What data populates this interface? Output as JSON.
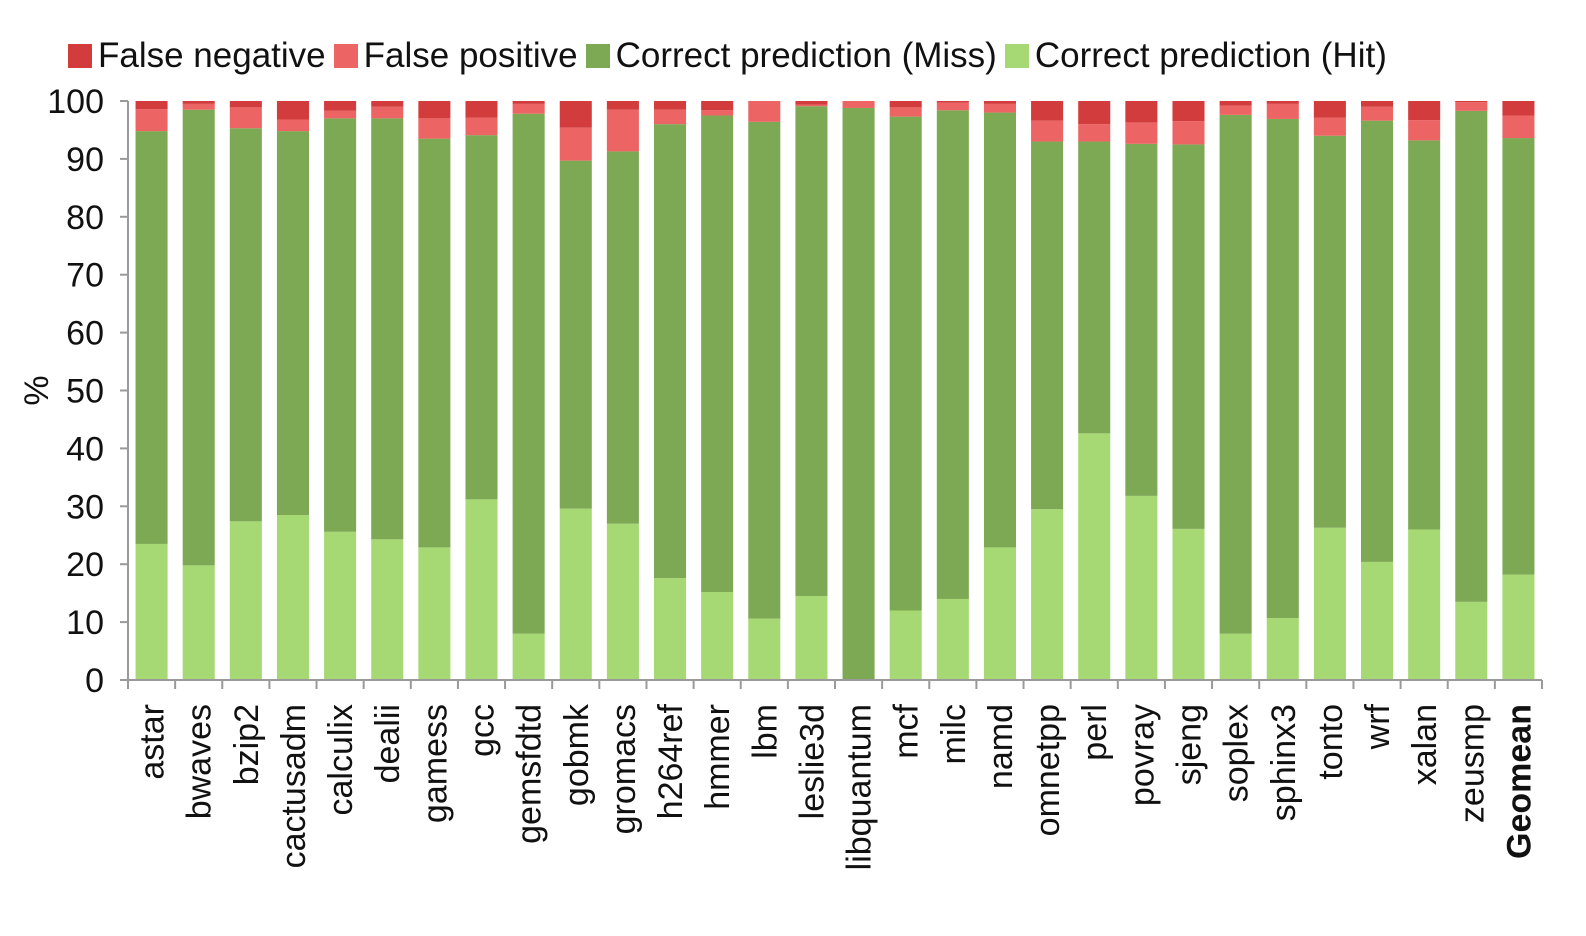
{
  "chart_data": {
    "type": "bar",
    "stacked": true,
    "title": "",
    "xlabel": "",
    "ylabel": "%",
    "ylim": [
      0,
      100
    ],
    "yticks": [
      0,
      10,
      20,
      30,
      40,
      50,
      60,
      70,
      80,
      90,
      100
    ],
    "grid": false,
    "legend_position": "top",
    "categories": [
      "astar",
      "bwaves",
      "bzip2",
      "cactusadm",
      "calculix",
      "dealii",
      "gamess",
      "gcc",
      "gemsfdtd",
      "gobmk",
      "gromacs",
      "h264ref",
      "hmmer",
      "lbm",
      "leslie3d",
      "libquantum",
      "mcf",
      "milc",
      "namd",
      "omnetpp",
      "perl",
      "povray",
      "sjeng",
      "soplex",
      "sphinx3",
      "tonto",
      "wrf",
      "xalan",
      "zeusmp",
      "Geomean"
    ],
    "bold_categories": [
      "Geomean"
    ],
    "series": [
      {
        "name": "Correct prediction (Hit)",
        "color": "#a6d974",
        "values": [
          23.5,
          19.8,
          27.4,
          28.5,
          25.6,
          24.3,
          22.9,
          31.2,
          8.0,
          29.6,
          27.0,
          17.6,
          15.2,
          10.6,
          14.5,
          0.0,
          12.0,
          14.0,
          22.9,
          29.5,
          42.6,
          31.8,
          26.1,
          8.0,
          10.7,
          26.3,
          20.4,
          26.0,
          13.5,
          18.2
        ]
      },
      {
        "name": "Correct prediction (Miss)",
        "color": "#7da854",
        "values": [
          71.3,
          78.7,
          67.9,
          66.3,
          71.4,
          72.7,
          70.6,
          62.9,
          89.8,
          60.1,
          64.3,
          78.4,
          82.3,
          85.8,
          84.6,
          98.8,
          85.3,
          84.4,
          75.1,
          63.5,
          50.4,
          60.8,
          66.4,
          89.6,
          86.2,
          67.7,
          76.2,
          67.2,
          84.8,
          75.4
        ]
      },
      {
        "name": "False positive",
        "color": "#ec6464",
        "values": [
          3.8,
          1.0,
          3.6,
          2.0,
          1.3,
          2.0,
          3.5,
          3.0,
          1.7,
          5.7,
          7.2,
          2.5,
          0.9,
          3.6,
          0.3,
          1.2,
          1.6,
          1.3,
          1.5,
          3.6,
          3.0,
          3.7,
          4.0,
          1.6,
          2.6,
          3.1,
          2.4,
          3.5,
          1.5,
          3.9
        ]
      },
      {
        "name": "False negative",
        "color": "#d23c3c",
        "values": [
          1.4,
          0.5,
          1.1,
          3.2,
          1.7,
          1.0,
          3.0,
          2.9,
          0.5,
          4.6,
          1.5,
          1.5,
          1.6,
          0.0,
          0.6,
          0.0,
          1.1,
          0.3,
          0.5,
          3.4,
          4.0,
          3.7,
          3.5,
          0.8,
          0.5,
          2.9,
          1.0,
          3.3,
          0.2,
          2.5
        ]
      }
    ],
    "legend_order": [
      "False negative",
      "False positive",
      "Correct prediction (Miss)",
      "Correct prediction (Hit)"
    ]
  }
}
